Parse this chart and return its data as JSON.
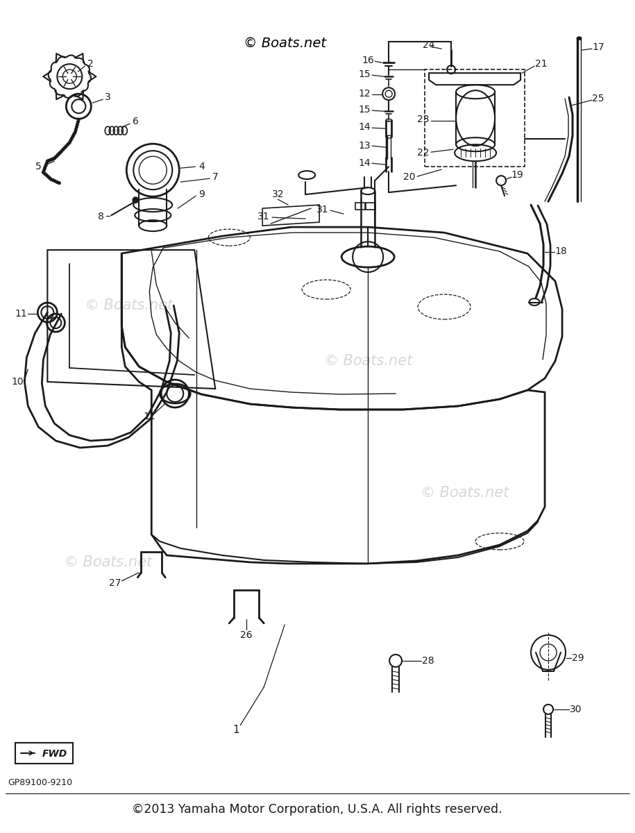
{
  "footer_text": "©2013 Yamaha Motor Corporation, U.S.A. All rights reserved.",
  "part_number": "GP89100-9210",
  "bg_color": "#ffffff",
  "line_color": "#1a1a1a",
  "watermark_color": "#d0d0d0",
  "copyright_top": "© Boats.net"
}
